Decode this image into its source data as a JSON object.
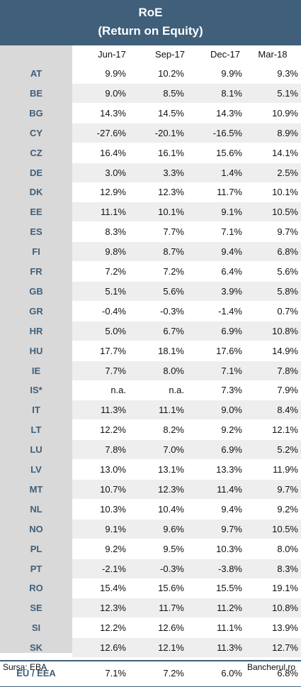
{
  "title_line1": "RoE",
  "title_line2": "(Return on Equity)",
  "chart_data": {
    "type": "table",
    "title": "RoE (Return on Equity)",
    "columns": [
      "Jun-17",
      "Sep-17",
      "Dec-17",
      "Mar-18"
    ],
    "rows": [
      {
        "label": "AT",
        "values": [
          "9.9%",
          "10.2%",
          "9.9%",
          "9.3%"
        ]
      },
      {
        "label": "BE",
        "values": [
          "9.0%",
          "8.5%",
          "8.1%",
          "5.1%"
        ]
      },
      {
        "label": "BG",
        "values": [
          "14.3%",
          "14.5%",
          "14.3%",
          "10.9%"
        ]
      },
      {
        "label": "CY",
        "values": [
          "-27.6%",
          "-20.1%",
          "-16.5%",
          "8.9%"
        ]
      },
      {
        "label": "CZ",
        "values": [
          "16.4%",
          "16.1%",
          "15.6%",
          "14.1%"
        ]
      },
      {
        "label": "DE",
        "values": [
          "3.0%",
          "3.3%",
          "1.4%",
          "2.5%"
        ]
      },
      {
        "label": "DK",
        "values": [
          "12.9%",
          "12.3%",
          "11.7%",
          "10.1%"
        ]
      },
      {
        "label": "EE",
        "values": [
          "11.1%",
          "10.1%",
          "9.1%",
          "10.5%"
        ]
      },
      {
        "label": "ES",
        "values": [
          "8.3%",
          "7.7%",
          "7.1%",
          "9.7%"
        ]
      },
      {
        "label": "FI",
        "values": [
          "9.8%",
          "8.7%",
          "9.4%",
          "6.8%"
        ]
      },
      {
        "label": "FR",
        "values": [
          "7.2%",
          "7.2%",
          "6.4%",
          "5.6%"
        ]
      },
      {
        "label": "GB",
        "values": [
          "5.1%",
          "5.6%",
          "3.9%",
          "5.8%"
        ]
      },
      {
        "label": "GR",
        "values": [
          "-0.4%",
          "-0.3%",
          "-1.4%",
          "0.7%"
        ]
      },
      {
        "label": "HR",
        "values": [
          "5.0%",
          "6.7%",
          "6.9%",
          "10.8%"
        ]
      },
      {
        "label": "HU",
        "values": [
          "17.7%",
          "18.1%",
          "17.6%",
          "14.9%"
        ]
      },
      {
        "label": "IE",
        "values": [
          "7.7%",
          "8.0%",
          "7.1%",
          "7.8%"
        ]
      },
      {
        "label": "IS*",
        "values": [
          "n.a.",
          "n.a.",
          "7.3%",
          "7.9%"
        ]
      },
      {
        "label": "IT",
        "values": [
          "11.3%",
          "11.1%",
          "9.0%",
          "8.4%"
        ]
      },
      {
        "label": "LT",
        "values": [
          "12.2%",
          "8.2%",
          "9.2%",
          "12.1%"
        ]
      },
      {
        "label": "LU",
        "values": [
          "7.8%",
          "7.0%",
          "6.9%",
          "5.2%"
        ]
      },
      {
        "label": "LV",
        "values": [
          "13.0%",
          "13.1%",
          "13.3%",
          "11.9%"
        ]
      },
      {
        "label": "MT",
        "values": [
          "10.7%",
          "12.3%",
          "11.4%",
          "9.7%"
        ]
      },
      {
        "label": "NL",
        "values": [
          "10.3%",
          "10.4%",
          "9.4%",
          "9.2%"
        ]
      },
      {
        "label": "NO",
        "values": [
          "9.1%",
          "9.6%",
          "9.7%",
          "10.5%"
        ]
      },
      {
        "label": "PL",
        "values": [
          "9.2%",
          "9.5%",
          "10.3%",
          "8.0%"
        ]
      },
      {
        "label": "PT",
        "values": [
          "-2.1%",
          "-0.3%",
          "-3.8%",
          "8.3%"
        ]
      },
      {
        "label": "RO",
        "values": [
          "15.4%",
          "15.6%",
          "15.5%",
          "19.1%"
        ]
      },
      {
        "label": "SE",
        "values": [
          "12.3%",
          "11.7%",
          "11.2%",
          "10.8%"
        ]
      },
      {
        "label": "SI",
        "values": [
          "12.2%",
          "12.6%",
          "11.1%",
          "13.9%"
        ]
      },
      {
        "label": "SK",
        "values": [
          "12.6%",
          "12.1%",
          "11.3%",
          "12.7%"
        ]
      }
    ],
    "total_row": {
      "label": "EU / EEA",
      "values": [
        "7.1%",
        "7.2%",
        "6.0%",
        "6.8%"
      ]
    }
  },
  "footer": {
    "source": "Sursa: EBA",
    "brand": "Bancherul.ro"
  },
  "colors": {
    "header_bg": "#3f5f7a",
    "label_col_bg": "#d9d9d9",
    "row_shade": "#eeeeee"
  }
}
